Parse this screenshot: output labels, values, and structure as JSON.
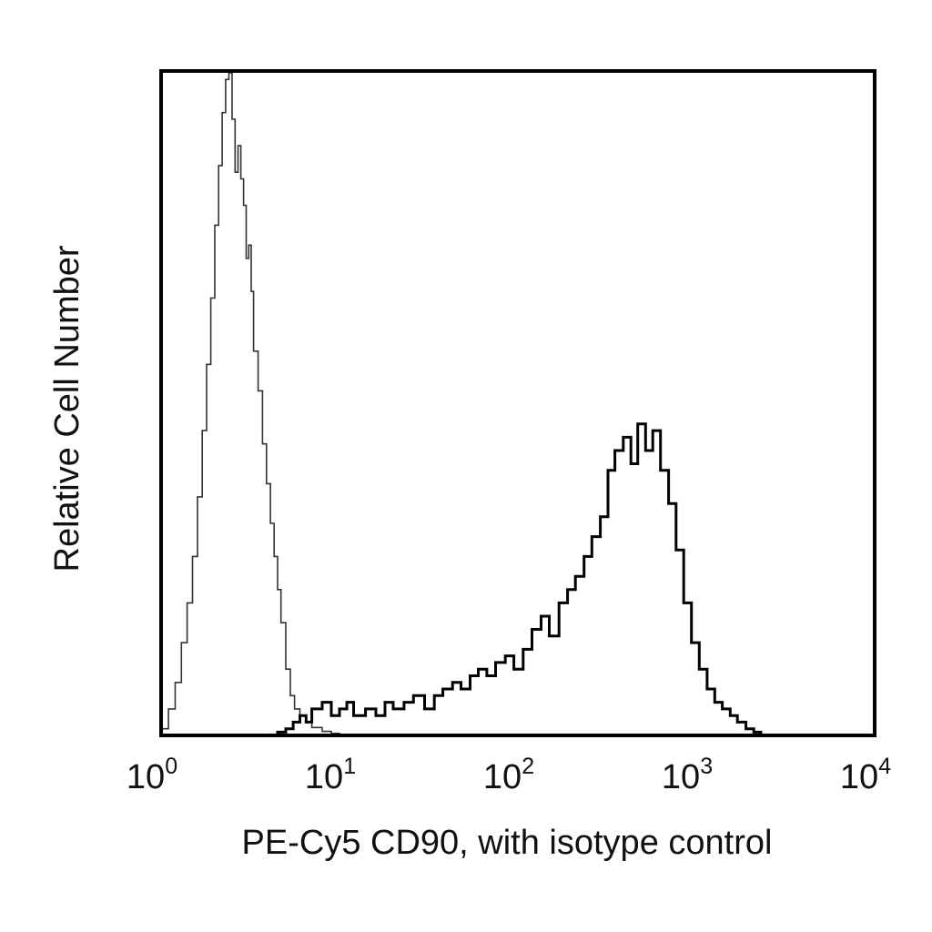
{
  "chart_data": {
    "type": "line",
    "xlabel": "PE-Cy5 CD90, with isotype control",
    "ylabel": "Relative Cell Number",
    "x_scale": "log",
    "xlim": [
      1,
      10000
    ],
    "ylim": [
      0,
      1
    ],
    "grid": false,
    "legend": "none",
    "x_ticks": [
      {
        "value": 1,
        "base": "10",
        "exp": "0"
      },
      {
        "value": 10,
        "base": "10",
        "exp": "1"
      },
      {
        "value": 100,
        "base": "10",
        "exp": "2"
      },
      {
        "value": 1000,
        "base": "10",
        "exp": "3"
      },
      {
        "value": 10000,
        "base": "10",
        "exp": "4"
      }
    ],
    "series": [
      {
        "color": "#333333",
        "stroke_style": "thin",
        "x": [
          1.0,
          1.1,
          1.2,
          1.3,
          1.4,
          1.5,
          1.6,
          1.7,
          1.8,
          1.9,
          2.0,
          2.1,
          2.2,
          2.3,
          2.4,
          2.5,
          2.6,
          2.7,
          2.8,
          2.9,
          3.0,
          3.1,
          3.2,
          3.3,
          3.5,
          3.7,
          3.9,
          4.1,
          4.3,
          4.5,
          4.7,
          5.0,
          5.3,
          5.6,
          6.0,
          6.5,
          7.0,
          8.0,
          9.0,
          10.0
        ],
        "y": [
          0.01,
          0.04,
          0.08,
          0.14,
          0.2,
          0.27,
          0.36,
          0.46,
          0.56,
          0.66,
          0.77,
          0.86,
          0.94,
          0.99,
          1.0,
          0.93,
          0.85,
          0.89,
          0.84,
          0.8,
          0.72,
          0.74,
          0.67,
          0.58,
          0.52,
          0.44,
          0.38,
          0.32,
          0.27,
          0.22,
          0.17,
          0.1,
          0.06,
          0.04,
          0.03,
          0.02,
          0.012,
          0.006,
          0.003,
          0.0
        ]
      },
      {
        "color": "#000000",
        "stroke_style": "thick",
        "x": [
          4.0,
          4.5,
          5.0,
          5.5,
          6.0,
          6.5,
          7.0,
          8.0,
          9.0,
          10.0,
          11.0,
          12.0,
          14.0,
          16.0,
          18.0,
          20.0,
          23.0,
          26.0,
          30.0,
          34.0,
          38.0,
          43.0,
          48.0,
          54.0,
          60.0,
          67.0,
          75.0,
          85.0,
          95.0,
          107.0,
          120.0,
          135.0,
          150.0,
          170.0,
          190.0,
          210.0,
          235.0,
          260.0,
          290.0,
          320.0,
          350.0,
          390.0,
          430.0,
          470.0,
          520.0,
          570.0,
          630.0,
          700.0,
          770.0,
          850.0,
          940.0,
          1040.0,
          1150.0,
          1270.0,
          1400.0,
          1550.0,
          1700.0,
          1900.0,
          2100.0,
          2300.0
        ],
        "y": [
          0.0,
          0.005,
          0.01,
          0.02,
          0.03,
          0.02,
          0.04,
          0.05,
          0.03,
          0.04,
          0.05,
          0.03,
          0.04,
          0.03,
          0.05,
          0.04,
          0.05,
          0.06,
          0.04,
          0.06,
          0.07,
          0.08,
          0.07,
          0.09,
          0.1,
          0.09,
          0.11,
          0.12,
          0.1,
          0.13,
          0.16,
          0.18,
          0.15,
          0.2,
          0.22,
          0.24,
          0.27,
          0.3,
          0.33,
          0.4,
          0.43,
          0.45,
          0.41,
          0.47,
          0.43,
          0.46,
          0.4,
          0.35,
          0.28,
          0.2,
          0.14,
          0.1,
          0.07,
          0.05,
          0.04,
          0.03,
          0.02,
          0.01,
          0.005,
          0.0
        ]
      }
    ]
  }
}
